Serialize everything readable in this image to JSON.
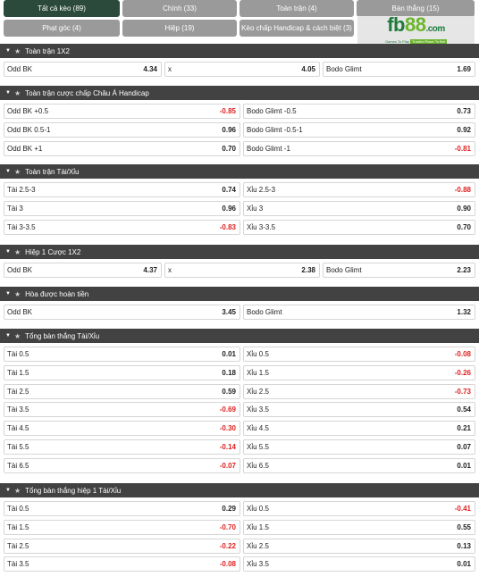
{
  "tabs": [
    {
      "label": "Tất cả kèo (89)",
      "active": true
    },
    {
      "label": "Chính (33)",
      "active": false
    },
    {
      "label": "Toàn trận (4)",
      "active": false
    },
    {
      "label": "Bàn thắng (15)",
      "active": false
    },
    {
      "label": "Phạt góc (4)",
      "active": false
    },
    {
      "label": "Hiệp (19)",
      "active": false
    },
    {
      "label": "Kèo chấp Handicap & cách biệt (3)",
      "active": false
    }
  ],
  "logo": {
    "fb": "fb",
    "num": "88",
    "dom": ".com",
    "tagline_a": "Games To Play",
    "tagline_b": "Trusted Place To Bet"
  },
  "colors": {
    "header_bg": "#424242",
    "tab_bg": "#9a9a9a",
    "tab_active_bg": "#2b4a3c",
    "negative": "#e02020",
    "logo_green": "#1f7a3c",
    "logo_lime": "#6cb52e"
  },
  "sections": [
    {
      "title": "Toàn trận 1X2",
      "cols": 3,
      "rows": [
        [
          {
            "label": "Odd BK",
            "value": "4.34"
          },
          {
            "label": "x",
            "value": "4.05"
          },
          {
            "label": "Bodo Glimt",
            "value": "1.69"
          }
        ]
      ]
    },
    {
      "title": "Toàn trận cược chấp Châu Á Handicap",
      "cols": 2,
      "rows": [
        [
          {
            "label": "Odd BK +0.5",
            "value": "-0.85"
          },
          {
            "label": "Bodo Glimt -0.5",
            "value": "0.73"
          }
        ],
        [
          {
            "label": "Odd BK 0.5-1",
            "value": "0.96"
          },
          {
            "label": "Bodo Glimt -0.5-1",
            "value": "0.92"
          }
        ],
        [
          {
            "label": "Odd BK +1",
            "value": "0.70"
          },
          {
            "label": "Bodo Glimt -1",
            "value": "-0.81"
          }
        ]
      ]
    },
    {
      "title": "Toàn trận Tài/Xỉu",
      "cols": 2,
      "rows": [
        [
          {
            "label": "Tài 2.5-3",
            "value": "0.74"
          },
          {
            "label": "Xỉu 2.5-3",
            "value": "-0.88"
          }
        ],
        [
          {
            "label": "Tài 3",
            "value": "0.96"
          },
          {
            "label": "Xỉu 3",
            "value": "0.90"
          }
        ],
        [
          {
            "label": "Tài 3-3.5",
            "value": "-0.83"
          },
          {
            "label": "Xỉu 3-3.5",
            "value": "0.70"
          }
        ]
      ]
    },
    {
      "title": "Hiệp 1 Cược 1X2",
      "cols": 3,
      "rows": [
        [
          {
            "label": "Odd BK",
            "value": "4.37"
          },
          {
            "label": "x",
            "value": "2.38"
          },
          {
            "label": "Bodo Glimt",
            "value": "2.23"
          }
        ]
      ]
    },
    {
      "title": "Hòa được hoàn tiền",
      "cols": 2,
      "rows": [
        [
          {
            "label": "Odd BK",
            "value": "3.45"
          },
          {
            "label": "Bodo Glimt",
            "value": "1.32"
          }
        ]
      ]
    },
    {
      "title": "Tổng bàn thắng Tài/Xỉu",
      "cols": 2,
      "rows": [
        [
          {
            "label": "Tài 0.5",
            "value": "0.01"
          },
          {
            "label": "Xỉu 0.5",
            "value": "-0.08"
          }
        ],
        [
          {
            "label": "Tài 1.5",
            "value": "0.18"
          },
          {
            "label": "Xỉu 1.5",
            "value": "-0.26"
          }
        ],
        [
          {
            "label": "Tài 2.5",
            "value": "0.59"
          },
          {
            "label": "Xỉu 2.5",
            "value": "-0.73"
          }
        ],
        [
          {
            "label": "Tài 3.5",
            "value": "-0.69"
          },
          {
            "label": "Xỉu 3.5",
            "value": "0.54"
          }
        ],
        [
          {
            "label": "Tài 4.5",
            "value": "-0.30"
          },
          {
            "label": "Xỉu 4.5",
            "value": "0.21"
          }
        ],
        [
          {
            "label": "Tài 5.5",
            "value": "-0.14"
          },
          {
            "label": "Xỉu 5.5",
            "value": "0.07"
          }
        ],
        [
          {
            "label": "Tài 6.5",
            "value": "-0.07"
          },
          {
            "label": "Xỉu 6.5",
            "value": "0.01"
          }
        ]
      ]
    },
    {
      "title": "Tổng bàn thắng hiệp 1 Tài/Xỉu",
      "cols": 2,
      "rows": [
        [
          {
            "label": "Tài 0.5",
            "value": "0.29"
          },
          {
            "label": "Xỉu 0.5",
            "value": "-0.41"
          }
        ],
        [
          {
            "label": "Tài 1.5",
            "value": "-0.70"
          },
          {
            "label": "Xỉu 1.5",
            "value": "0.55"
          }
        ],
        [
          {
            "label": "Tài 2.5",
            "value": "-0.22"
          },
          {
            "label": "Xỉu 2.5",
            "value": "0.13"
          }
        ],
        [
          {
            "label": "Tài 3.5",
            "value": "-0.08"
          },
          {
            "label": "Xỉu 3.5",
            "value": "0.01"
          }
        ]
      ]
    }
  ]
}
